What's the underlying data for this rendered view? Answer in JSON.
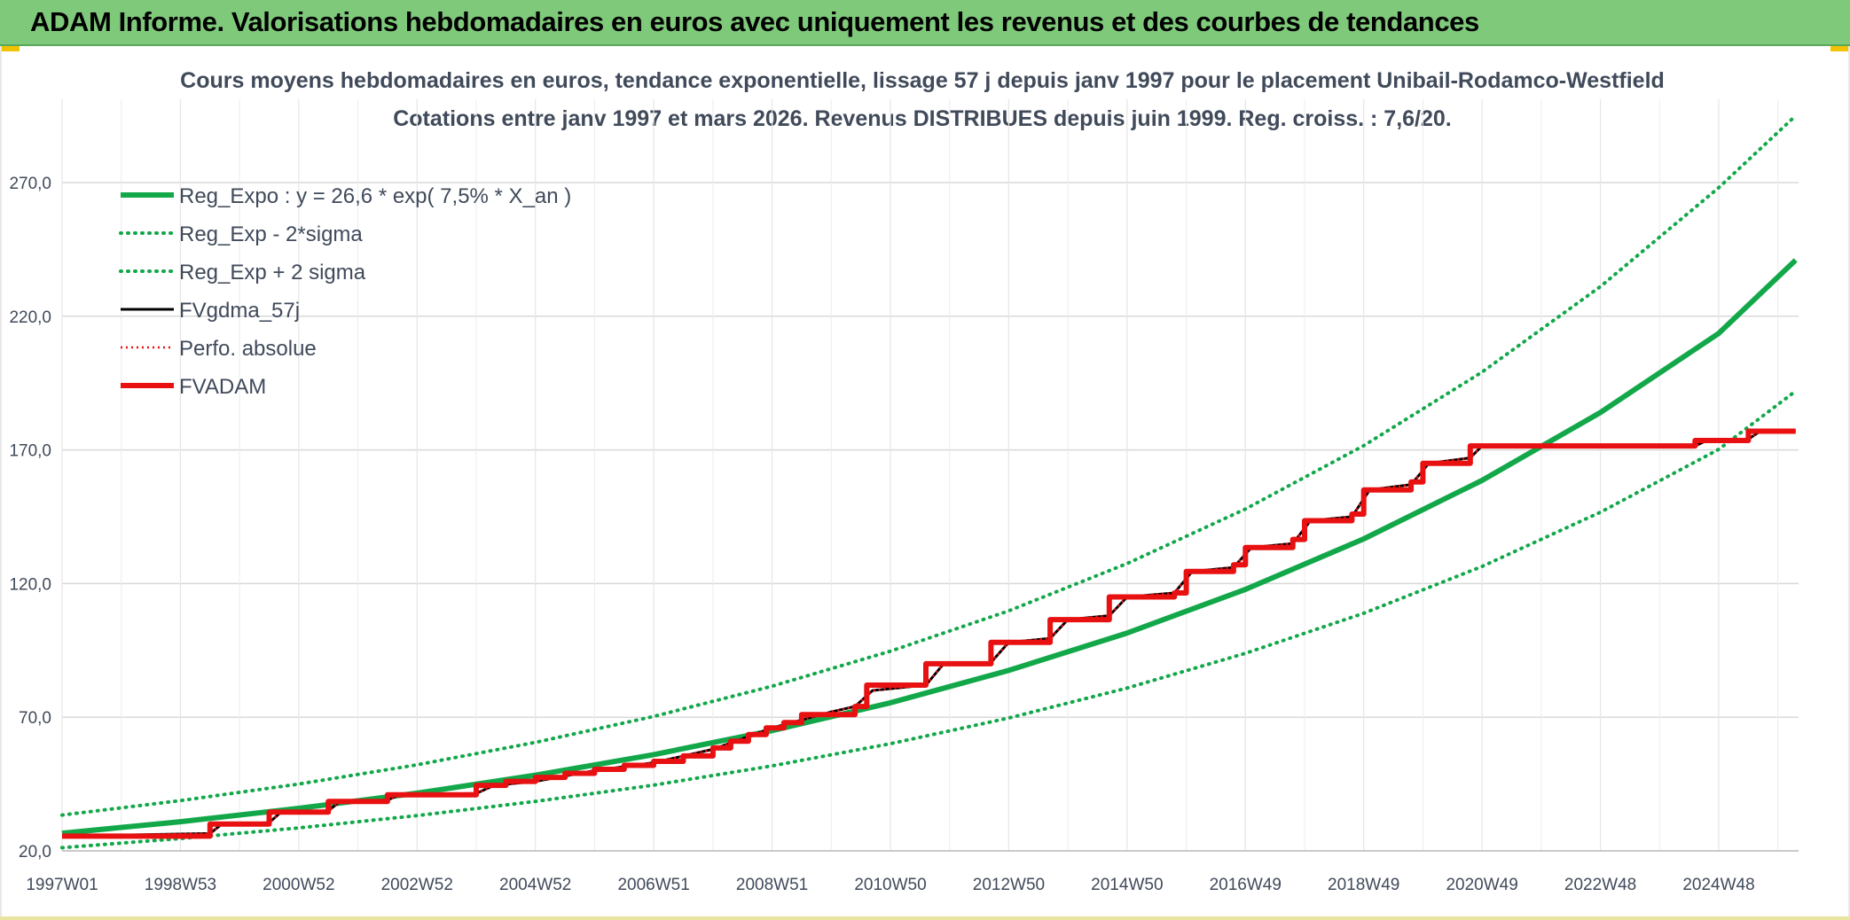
{
  "header": {
    "title": "ADAM Informe. Valorisations hebdomadaires en euros avec uniquement les revenus et des courbes de tendances"
  },
  "colors": {
    "green": "#12a84a",
    "red": "#e81010",
    "black": "#000000",
    "grid": "#d9d9d9",
    "text": "#404a5a",
    "banner": "#7fc97a"
  },
  "chart_data": {
    "type": "line",
    "title": "Cours moyens hebdomadaires en euros, tendance exponentielle, lissage 57 j depuis janv 1997 pour le placement Unibail-Rodamco-Westfield",
    "subtitle": "Cotations entre janv 1997 et mars 2026. Revenus DISTRIBUES depuis juin 1999. Reg. croiss. : 7,6/20.",
    "xlabel": "",
    "ylabel": "",
    "x_range": [
      1997.0,
      2026.3
    ],
    "ylim": [
      20,
      295
    ],
    "grid": true,
    "legend_position": "top-left",
    "y_ticks": [
      {
        "value": 20,
        "label": "20,0"
      },
      {
        "value": 70,
        "label": "70,0"
      },
      {
        "value": 120,
        "label": "120,0"
      },
      {
        "value": 170,
        "label": "170,0"
      },
      {
        "value": 220,
        "label": "220,0"
      },
      {
        "value": 270,
        "label": "270,0"
      }
    ],
    "x_ticks": [
      {
        "value": 1997.0,
        "label": "1997W01"
      },
      {
        "value": 1999.0,
        "label": "1998W53"
      },
      {
        "value": 2001.0,
        "label": "2000W52"
      },
      {
        "value": 2003.0,
        "label": "2002W52"
      },
      {
        "value": 2005.0,
        "label": "2004W52"
      },
      {
        "value": 2007.0,
        "label": "2006W51"
      },
      {
        "value": 2009.0,
        "label": "2008W51"
      },
      {
        "value": 2011.0,
        "label": "2010W50"
      },
      {
        "value": 2013.0,
        "label": "2012W50"
      },
      {
        "value": 2015.0,
        "label": "2014W50"
      },
      {
        "value": 2017.0,
        "label": "2016W49"
      },
      {
        "value": 2019.0,
        "label": "2018W49"
      },
      {
        "value": 2021.0,
        "label": "2020W49"
      },
      {
        "value": 2023.0,
        "label": "2022W48"
      },
      {
        "value": 2025.0,
        "label": "2024W48"
      }
    ],
    "series": [
      {
        "name": "Reg_Expo : y = 26,6 * exp( 7,5% *  X_an )",
        "style": "solid-thick",
        "color": "#12a84a",
        "points": [
          [
            1997.0,
            26.6
          ],
          [
            1999.0,
            30.9
          ],
          [
            2001.0,
            35.9
          ],
          [
            2003.0,
            41.6
          ],
          [
            2005.0,
            48.3
          ],
          [
            2007.0,
            56.0
          ],
          [
            2009.0,
            65.0
          ],
          [
            2011.0,
            75.4
          ],
          [
            2013.0,
            87.5
          ],
          [
            2015.0,
            101.5
          ],
          [
            2017.0,
            117.8
          ],
          [
            2019.0,
            136.7
          ],
          [
            2021.0,
            158.6
          ],
          [
            2023.0,
            184.0
          ],
          [
            2025.0,
            213.6
          ],
          [
            2026.3,
            241.0
          ]
        ]
      },
      {
        "name": "Reg_Exp - 2*sigma",
        "style": "dotted",
        "color": "#12a84a",
        "points": [
          [
            1997.0,
            21.2
          ],
          [
            1999.0,
            24.6
          ],
          [
            2001.0,
            28.6
          ],
          [
            2003.0,
            33.2
          ],
          [
            2005.0,
            38.5
          ],
          [
            2007.0,
            44.6
          ],
          [
            2009.0,
            51.8
          ],
          [
            2011.0,
            60.1
          ],
          [
            2013.0,
            69.7
          ],
          [
            2015.0,
            80.9
          ],
          [
            2017.0,
            93.9
          ],
          [
            2019.0,
            108.9
          ],
          [
            2021.0,
            126.4
          ],
          [
            2023.0,
            146.7
          ],
          [
            2025.0,
            170.2
          ],
          [
            2026.3,
            192.0
          ]
        ]
      },
      {
        "name": "Reg_Exp + 2 sigma",
        "style": "dotted",
        "color": "#12a84a",
        "points": [
          [
            1997.0,
            33.4
          ],
          [
            1999.0,
            38.8
          ],
          [
            2001.0,
            45.0
          ],
          [
            2003.0,
            52.2
          ],
          [
            2005.0,
            60.6
          ],
          [
            2007.0,
            70.3
          ],
          [
            2009.0,
            81.6
          ],
          [
            2011.0,
            94.7
          ],
          [
            2013.0,
            109.8
          ],
          [
            2015.0,
            127.5
          ],
          [
            2017.0,
            147.9
          ],
          [
            2019.0,
            171.6
          ],
          [
            2021.0,
            199.1
          ],
          [
            2023.0,
            231.1
          ],
          [
            2025.0,
            268.1
          ],
          [
            2026.3,
            295.0
          ]
        ]
      },
      {
        "name": "FVgdma_57j",
        "style": "solid",
        "color": "#000000",
        "points": [
          [
            1997.0,
            25.5
          ],
          [
            1999.5,
            26.5
          ],
          [
            1999.7,
            30.0
          ],
          [
            2000.5,
            30.5
          ],
          [
            2000.7,
            34.5
          ],
          [
            2001.5,
            35.0
          ],
          [
            2001.7,
            38.5
          ],
          [
            2002.5,
            39.0
          ],
          [
            2002.7,
            41.0
          ],
          [
            2004.0,
            41.5
          ],
          [
            2004.3,
            44.5
          ],
          [
            2005.0,
            46.0
          ],
          [
            2006.0,
            50.0
          ],
          [
            2007.0,
            53.0
          ],
          [
            2008.0,
            58.0
          ],
          [
            2009.0,
            66.0
          ],
          [
            2010.0,
            72.0
          ],
          [
            2010.4,
            74.0
          ],
          [
            2010.7,
            80.0
          ],
          [
            2011.6,
            82.0
          ],
          [
            2011.9,
            90.0
          ],
          [
            2012.7,
            90.5
          ],
          [
            2013.0,
            98.0
          ],
          [
            2013.7,
            99.5
          ],
          [
            2014.0,
            106.5
          ],
          [
            2014.7,
            108.0
          ],
          [
            2015.0,
            115.0
          ],
          [
            2015.8,
            116.5
          ],
          [
            2016.1,
            124.5
          ],
          [
            2016.8,
            126.0
          ],
          [
            2017.1,
            133.5
          ],
          [
            2017.8,
            135.0
          ],
          [
            2018.1,
            143.5
          ],
          [
            2018.8,
            145.0
          ],
          [
            2019.1,
            155.0
          ],
          [
            2019.8,
            157.0
          ],
          [
            2020.1,
            165.0
          ],
          [
            2020.8,
            167.0
          ],
          [
            2021.0,
            171.5
          ],
          [
            2024.6,
            171.5
          ],
          [
            2024.8,
            173.5
          ],
          [
            2025.5,
            174.0
          ],
          [
            2025.7,
            177.0
          ],
          [
            2026.3,
            177.0
          ]
        ]
      },
      {
        "name": "Perfo. absolue",
        "style": "dotted-thin",
        "color": "#e81010",
        "points": [
          [
            1997.0,
            25.5
          ],
          [
            1999.5,
            26.5
          ],
          [
            1999.7,
            30.0
          ],
          [
            2000.5,
            30.5
          ],
          [
            2000.7,
            34.5
          ],
          [
            2001.5,
            35.0
          ],
          [
            2001.7,
            38.5
          ],
          [
            2002.5,
            39.0
          ],
          [
            2002.7,
            41.0
          ],
          [
            2004.0,
            41.5
          ],
          [
            2004.3,
            44.5
          ],
          [
            2005.0,
            46.0
          ],
          [
            2006.0,
            50.0
          ],
          [
            2007.0,
            53.0
          ],
          [
            2008.0,
            58.0
          ],
          [
            2009.0,
            66.0
          ],
          [
            2010.0,
            72.0
          ],
          [
            2010.4,
            74.0
          ],
          [
            2010.7,
            80.0
          ],
          [
            2011.6,
            82.0
          ],
          [
            2011.9,
            90.0
          ],
          [
            2012.7,
            90.5
          ],
          [
            2013.0,
            98.0
          ],
          [
            2013.7,
            99.5
          ],
          [
            2014.0,
            106.5
          ],
          [
            2014.7,
            108.0
          ],
          [
            2015.0,
            115.0
          ],
          [
            2015.8,
            116.5
          ],
          [
            2016.1,
            124.5
          ],
          [
            2016.8,
            126.0
          ],
          [
            2017.1,
            133.5
          ],
          [
            2017.8,
            135.0
          ],
          [
            2018.1,
            143.5
          ],
          [
            2018.8,
            145.0
          ],
          [
            2019.1,
            155.0
          ],
          [
            2019.8,
            157.0
          ],
          [
            2020.1,
            165.0
          ],
          [
            2020.8,
            167.0
          ],
          [
            2021.0,
            171.5
          ],
          [
            2024.6,
            171.5
          ],
          [
            2024.8,
            173.5
          ],
          [
            2025.5,
            174.0
          ],
          [
            2025.7,
            177.0
          ],
          [
            2026.3,
            177.0
          ]
        ]
      },
      {
        "name": "FVADAM",
        "style": "solid-thick",
        "color": "#e81010",
        "points": [
          [
            1997.0,
            25.5
          ],
          [
            1999.5,
            25.5
          ],
          [
            1999.5,
            30.0
          ],
          [
            2000.5,
            30.0
          ],
          [
            2000.5,
            34.5
          ],
          [
            2001.5,
            34.5
          ],
          [
            2001.5,
            38.5
          ],
          [
            2002.5,
            38.5
          ],
          [
            2002.5,
            41.0
          ],
          [
            2004.0,
            41.0
          ],
          [
            2004.0,
            44.5
          ],
          [
            2004.5,
            44.5
          ],
          [
            2004.5,
            46.0
          ],
          [
            2005.0,
            46.0
          ],
          [
            2005.0,
            47.5
          ],
          [
            2005.5,
            47.5
          ],
          [
            2005.5,
            49.0
          ],
          [
            2006.0,
            49.0
          ],
          [
            2006.0,
            50.5
          ],
          [
            2006.5,
            50.5
          ],
          [
            2006.5,
            52.0
          ],
          [
            2007.0,
            52.0
          ],
          [
            2007.0,
            53.5
          ],
          [
            2007.5,
            53.5
          ],
          [
            2007.5,
            55.5
          ],
          [
            2008.0,
            55.5
          ],
          [
            2008.0,
            58.5
          ],
          [
            2008.3,
            58.5
          ],
          [
            2008.3,
            61.0
          ],
          [
            2008.6,
            61.0
          ],
          [
            2008.6,
            63.5
          ],
          [
            2008.9,
            63.5
          ],
          [
            2008.9,
            66.0
          ],
          [
            2009.2,
            66.0
          ],
          [
            2009.2,
            68.0
          ],
          [
            2009.5,
            68.0
          ],
          [
            2009.5,
            71.0
          ],
          [
            2010.4,
            71.0
          ],
          [
            2010.4,
            74.0
          ],
          [
            2010.6,
            74.0
          ],
          [
            2010.6,
            82.0
          ],
          [
            2011.6,
            82.0
          ],
          [
            2011.6,
            90.0
          ],
          [
            2012.7,
            90.0
          ],
          [
            2012.7,
            98.0
          ],
          [
            2013.7,
            98.0
          ],
          [
            2013.7,
            106.5
          ],
          [
            2014.7,
            106.5
          ],
          [
            2014.7,
            115.0
          ],
          [
            2015.8,
            115.0
          ],
          [
            2015.8,
            116.5
          ],
          [
            2016.0,
            116.5
          ],
          [
            2016.0,
            124.5
          ],
          [
            2016.8,
            124.5
          ],
          [
            2016.8,
            127.0
          ],
          [
            2017.0,
            127.0
          ],
          [
            2017.0,
            133.5
          ],
          [
            2017.8,
            133.5
          ],
          [
            2017.8,
            136.5
          ],
          [
            2018.0,
            136.5
          ],
          [
            2018.0,
            143.5
          ],
          [
            2018.8,
            143.5
          ],
          [
            2018.8,
            146.0
          ],
          [
            2019.0,
            146.0
          ],
          [
            2019.0,
            155.0
          ],
          [
            2019.8,
            155.0
          ],
          [
            2019.8,
            158.0
          ],
          [
            2020.0,
            158.0
          ],
          [
            2020.0,
            165.0
          ],
          [
            2020.8,
            165.0
          ],
          [
            2020.8,
            171.5
          ],
          [
            2024.6,
            171.5
          ],
          [
            2024.6,
            173.5
          ],
          [
            2025.5,
            173.5
          ],
          [
            2025.5,
            177.0
          ],
          [
            2026.3,
            177.0
          ]
        ]
      }
    ]
  }
}
